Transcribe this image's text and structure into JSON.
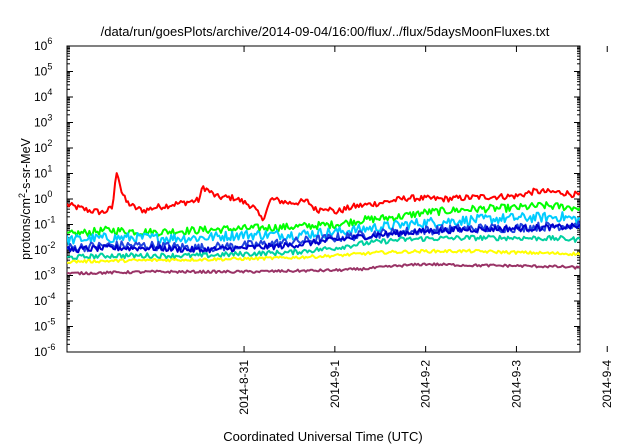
{
  "chart_data": {
    "type": "line",
    "title": "/data/run/goesPlots/archive/2014-09-04/16:00/flux/../flux/5daysMoonFluxes.txt",
    "xlabel": "Coordinated Universal Time (UTC)",
    "ylabel": {
      "prefix": "protons/cm",
      "sup": "2",
      "suffix": "-s-sr-MeV"
    },
    "x_range_days": [
      -0.95,
      4.7
    ],
    "x_start_date": "2014-08-30",
    "ylim": [
      1e-06,
      1000000.0
    ],
    "y_scale": "log",
    "grid": false,
    "legend": "none",
    "x_ticks": [
      {
        "label": "2014-8-31",
        "x": "2014-8-31"
      },
      {
        "label": "2014-9-1",
        "x": "2014-9-1"
      },
      {
        "label": "2014-9-2",
        "x": "2014-9-2"
      },
      {
        "label": "2014-9-3",
        "x": "2014-9-3"
      },
      {
        "label": "2014-9-4",
        "x": "2014-9-4"
      }
    ],
    "y_ticks": [
      {
        "base": "10",
        "exp": "-6",
        "value": 1e-06
      },
      {
        "base": "10",
        "exp": "-5",
        "value": 1e-05
      },
      {
        "base": "10",
        "exp": "-4",
        "value": 0.0001
      },
      {
        "base": "10",
        "exp": "-3",
        "value": 0.001
      },
      {
        "base": "10",
        "exp": "-2",
        "value": 0.01
      },
      {
        "base": "10",
        "exp": "-1",
        "value": 0.1
      },
      {
        "base": "10",
        "exp": "0",
        "value": 1
      },
      {
        "base": "10",
        "exp": "1",
        "value": 10
      },
      {
        "base": "10",
        "exp": "2",
        "value": 100
      },
      {
        "base": "10",
        "exp": "3",
        "value": 1000
      },
      {
        "base": "10",
        "exp": "4",
        "value": 10000
      },
      {
        "base": "10",
        "exp": "5",
        "value": 100000
      },
      {
        "base": "10",
        "exp": "6",
        "value": 1000000
      }
    ],
    "series": [
      {
        "color": "#ff0000",
        "noise": 0.12,
        "points": [
          [
            -0.95,
            0.6
          ],
          [
            -0.7,
            0.35
          ],
          [
            -0.55,
            0.3
          ],
          [
            -0.45,
            0.45
          ],
          [
            -0.4,
            15
          ],
          [
            -0.35,
            2
          ],
          [
            -0.3,
            0.8
          ],
          [
            -0.2,
            0.45
          ],
          [
            -0.1,
            0.35
          ],
          [
            0.0,
            0.45
          ],
          [
            0.2,
            0.6
          ],
          [
            0.5,
            0.9
          ],
          [
            0.55,
            3
          ],
          [
            0.7,
            1.2
          ],
          [
            0.9,
            1.1
          ],
          [
            1.1,
            0.5
          ],
          [
            1.2,
            0.15
          ],
          [
            1.3,
            1.0
          ],
          [
            1.5,
            0.7
          ],
          [
            1.7,
            0.8
          ],
          [
            1.8,
            0.35
          ],
          [
            1.9,
            0.5
          ],
          [
            2.0,
            0.3
          ],
          [
            2.2,
            0.5
          ],
          [
            2.5,
            0.7
          ],
          [
            2.8,
            1.1
          ],
          [
            3.2,
            1.0
          ],
          [
            3.6,
            1.2
          ],
          [
            4.0,
            1.3
          ],
          [
            4.2,
            2.0
          ],
          [
            4.5,
            1.8
          ],
          [
            4.7,
            1.4
          ]
        ]
      },
      {
        "color": "#00ff00",
        "noise": 0.15,
        "points": [
          [
            -0.95,
            0.04
          ],
          [
            -0.5,
            0.06
          ],
          [
            0.0,
            0.05
          ],
          [
            0.5,
            0.06
          ],
          [
            1.0,
            0.07
          ],
          [
            1.5,
            0.08
          ],
          [
            2.0,
            0.1
          ],
          [
            2.3,
            0.15
          ],
          [
            2.7,
            0.2
          ],
          [
            3.0,
            0.3
          ],
          [
            3.5,
            0.4
          ],
          [
            4.0,
            0.45
          ],
          [
            4.3,
            0.55
          ],
          [
            4.7,
            0.45
          ]
        ]
      },
      {
        "color": "#00ccff",
        "noise": 0.2,
        "points": [
          [
            -0.95,
            0.025
          ],
          [
            -0.5,
            0.03
          ],
          [
            0.0,
            0.03
          ],
          [
            0.5,
            0.03
          ],
          [
            1.0,
            0.04
          ],
          [
            1.5,
            0.04
          ],
          [
            2.0,
            0.05
          ],
          [
            2.5,
            0.08
          ],
          [
            3.0,
            0.12
          ],
          [
            3.5,
            0.15
          ],
          [
            4.0,
            0.18
          ],
          [
            4.5,
            0.2
          ],
          [
            4.7,
            0.15
          ]
        ]
      },
      {
        "color": "#2244dd",
        "noise": 0.18,
        "points": [
          [
            -0.95,
            0.012
          ],
          [
            -0.5,
            0.015
          ],
          [
            0.0,
            0.015
          ],
          [
            0.5,
            0.012
          ],
          [
            1.0,
            0.015
          ],
          [
            1.5,
            0.02
          ],
          [
            2.0,
            0.03
          ],
          [
            2.5,
            0.045
          ],
          [
            3.0,
            0.06
          ],
          [
            3.5,
            0.07
          ],
          [
            4.0,
            0.075
          ],
          [
            4.5,
            0.09
          ],
          [
            4.7,
            0.1
          ]
        ]
      },
      {
        "color": "#0000cc",
        "noise": 0.12,
        "points": [
          [
            -0.95,
            0.01
          ],
          [
            -0.5,
            0.012
          ],
          [
            0.0,
            0.012
          ],
          [
            0.5,
            0.01
          ],
          [
            1.0,
            0.012
          ],
          [
            1.5,
            0.015
          ],
          [
            2.0,
            0.025
          ],
          [
            2.5,
            0.04
          ],
          [
            3.0,
            0.055
          ],
          [
            3.5,
            0.065
          ],
          [
            4.0,
            0.07
          ],
          [
            4.5,
            0.08
          ],
          [
            4.7,
            0.085
          ]
        ]
      },
      {
        "color": "#00d0a0",
        "noise": 0.1,
        "points": [
          [
            -0.95,
            0.005
          ],
          [
            -0.5,
            0.006
          ],
          [
            0.0,
            0.006
          ],
          [
            0.5,
            0.006
          ],
          [
            1.0,
            0.007
          ],
          [
            1.5,
            0.008
          ],
          [
            2.0,
            0.012
          ],
          [
            2.3,
            0.018
          ],
          [
            2.7,
            0.025
          ],
          [
            3.0,
            0.028
          ],
          [
            3.5,
            0.03
          ],
          [
            4.0,
            0.03
          ],
          [
            4.5,
            0.028
          ],
          [
            4.7,
            0.025
          ]
        ]
      },
      {
        "color": "#ffff00",
        "noise": 0.06,
        "points": [
          [
            -0.95,
            0.0035
          ],
          [
            0.0,
            0.004
          ],
          [
            1.0,
            0.0045
          ],
          [
            1.5,
            0.005
          ],
          [
            2.0,
            0.006
          ],
          [
            2.5,
            0.008
          ],
          [
            3.0,
            0.009
          ],
          [
            3.5,
            0.009
          ],
          [
            4.0,
            0.008
          ],
          [
            4.7,
            0.007
          ]
        ]
      },
      {
        "color": "#993366",
        "noise": 0.05,
        "points": [
          [
            -0.95,
            0.0012
          ],
          [
            0.0,
            0.0014
          ],
          [
            1.0,
            0.0014
          ],
          [
            1.5,
            0.0015
          ],
          [
            2.0,
            0.0016
          ],
          [
            2.3,
            0.0018
          ],
          [
            2.7,
            0.0024
          ],
          [
            3.0,
            0.0028
          ],
          [
            3.5,
            0.0025
          ],
          [
            4.0,
            0.0024
          ],
          [
            4.5,
            0.0022
          ],
          [
            4.7,
            0.002
          ]
        ]
      }
    ]
  }
}
